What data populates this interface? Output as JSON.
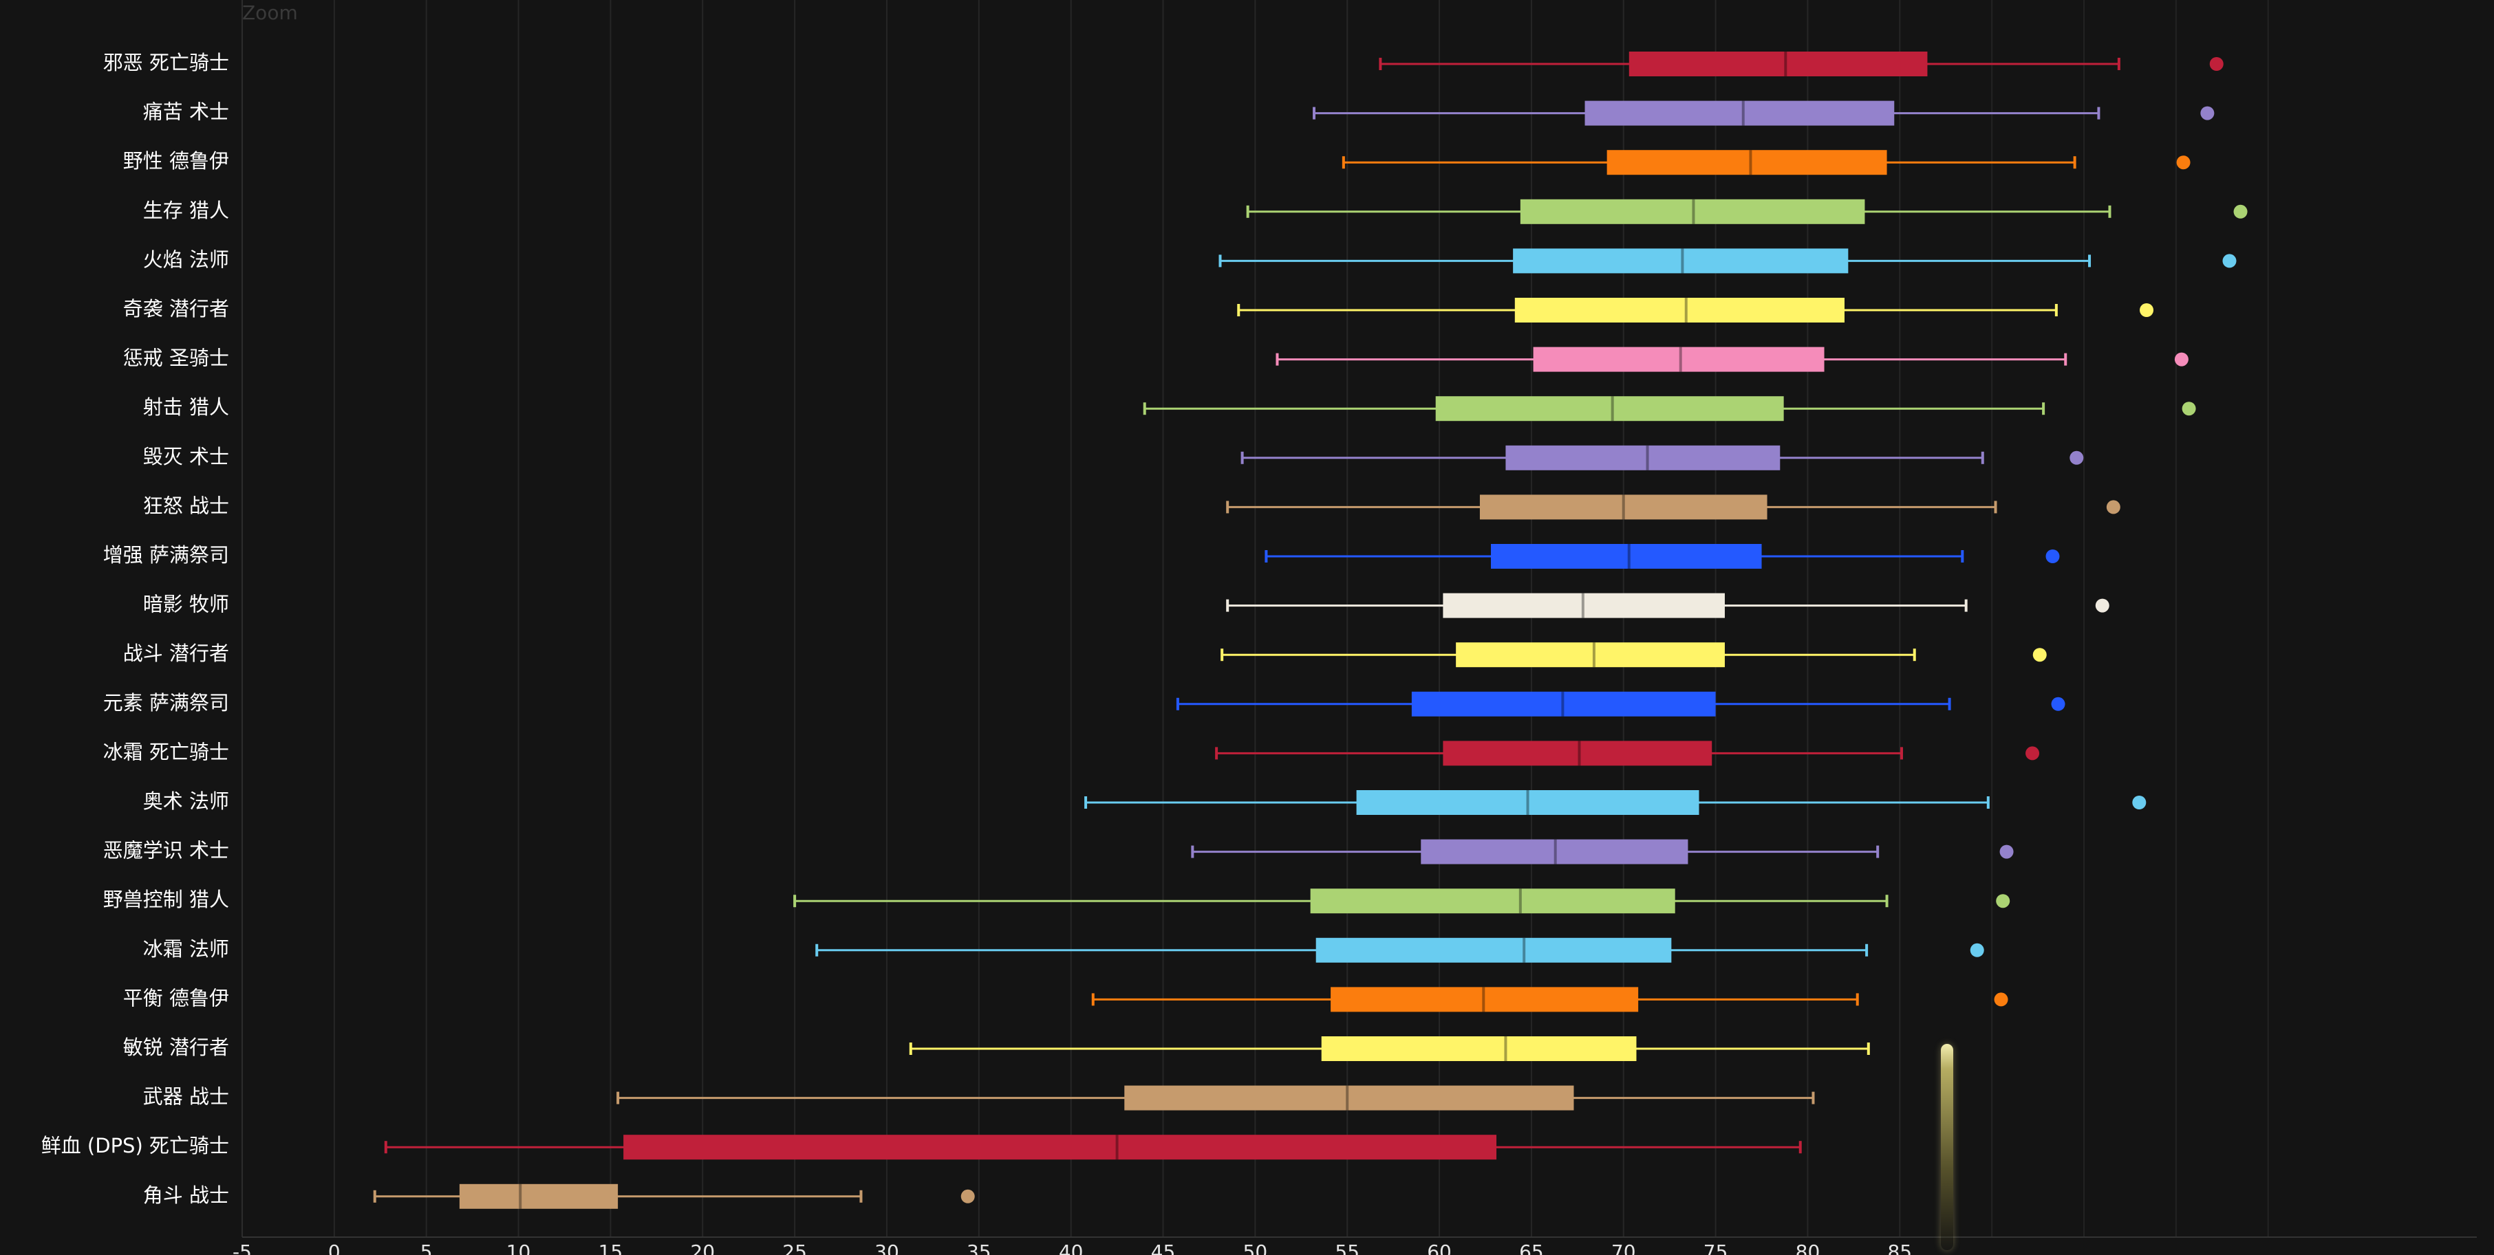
{
  "toolbar": {
    "zoom_label": "Zoom"
  },
  "chart_data": {
    "type": "boxplot",
    "title": "",
    "xlabel": "",
    "ylabel": "",
    "xlim": [
      -5,
      88
    ],
    "x_ticks": [
      -5,
      0,
      5,
      10,
      15,
      20,
      25,
      30,
      35,
      40,
      45,
      50,
      55,
      60,
      65,
      70,
      75,
      80,
      85
    ],
    "grid": "vertical",
    "legend": "none",
    "series": [
      {
        "label": "邪恶 死亡骑士",
        "color": "#c0203a",
        "min": 56.8,
        "q1": 70.3,
        "median": 78.8,
        "q3": 86.5,
        "max": 96.9,
        "outlier": 102.2
      },
      {
        "label": "痛苦 术士",
        "color": "#9482cc",
        "min": 53.2,
        "q1": 67.9,
        "median": 76.5,
        "q3": 84.7,
        "max": 95.8,
        "outlier": 101.7
      },
      {
        "label": "野性 德鲁伊",
        "color": "#fb7d0e",
        "min": 54.8,
        "q1": 69.1,
        "median": 76.9,
        "q3": 84.3,
        "max": 94.5,
        "outlier": 100.4
      },
      {
        "label": "生存 猎人",
        "color": "#abd373",
        "min": 49.6,
        "q1": 64.4,
        "median": 73.8,
        "q3": 83.1,
        "max": 96.4,
        "outlier": 103.5
      },
      {
        "label": "火焰 法师",
        "color": "#69ccf0",
        "min": 48.1,
        "q1": 64.0,
        "median": 73.2,
        "q3": 82.2,
        "max": 95.3,
        "outlier": 102.9
      },
      {
        "label": "奇袭 潜行者",
        "color": "#fff468",
        "min": 49.1,
        "q1": 64.1,
        "median": 73.4,
        "q3": 82.0,
        "max": 93.5,
        "outlier": 98.4
      },
      {
        "label": "惩戒 圣骑士",
        "color": "#f58cba",
        "min": 51.2,
        "q1": 65.1,
        "median": 73.1,
        "q3": 80.9,
        "max": 94.0,
        "outlier": 100.3
      },
      {
        "label": "射击 猎人",
        "color": "#abd373",
        "min": 44.0,
        "q1": 59.8,
        "median": 69.4,
        "q3": 78.7,
        "max": 92.8,
        "outlier": 100.7
      },
      {
        "label": "毁灭 术士",
        "color": "#9482cc",
        "min": 49.3,
        "q1": 63.6,
        "median": 71.3,
        "q3": 78.5,
        "max": 89.5,
        "outlier": 94.6
      },
      {
        "label": "狂怒 战士",
        "color": "#c69b6d",
        "min": 48.5,
        "q1": 62.2,
        "median": 70.0,
        "q3": 77.8,
        "max": 90.2,
        "outlier": 96.6
      },
      {
        "label": "增强 萨满祭司",
        "color": "#2459ff",
        "min": 50.6,
        "q1": 62.8,
        "median": 70.3,
        "q3": 77.5,
        "max": 88.4,
        "outlier": 93.3
      },
      {
        "label": "暗影 牧师",
        "color": "#f0ebe0",
        "min": 48.5,
        "q1": 60.2,
        "median": 67.8,
        "q3": 75.5,
        "max": 88.6,
        "outlier": 96.0
      },
      {
        "label": "战斗 潜行者",
        "color": "#fff468",
        "min": 48.2,
        "q1": 60.9,
        "median": 68.4,
        "q3": 75.5,
        "max": 85.8,
        "outlier": 92.6
      },
      {
        "label": "元素 萨满祭司",
        "color": "#2459ff",
        "min": 45.8,
        "q1": 58.5,
        "median": 66.7,
        "q3": 75.0,
        "max": 87.7,
        "outlier": 93.6
      },
      {
        "label": "冰霜 死亡骑士",
        "color": "#c0203a",
        "min": 47.9,
        "q1": 60.2,
        "median": 67.6,
        "q3": 74.8,
        "max": 85.1,
        "outlier": 92.2
      },
      {
        "label": "奥术 法师",
        "color": "#69ccf0",
        "min": 40.8,
        "q1": 55.5,
        "median": 64.8,
        "q3": 74.1,
        "max": 89.8,
        "outlier": 98.0
      },
      {
        "label": "恶魔学识 术士",
        "color": "#9482cc",
        "min": 46.6,
        "q1": 59.0,
        "median": 66.3,
        "q3": 73.5,
        "max": 83.8,
        "outlier": 90.8
      },
      {
        "label": "野兽控制 猎人",
        "color": "#abd373",
        "min": 25.0,
        "q1": 53.0,
        "median": 64.4,
        "q3": 72.8,
        "max": 84.3,
        "outlier": 90.6
      },
      {
        "label": "冰霜 法师",
        "color": "#69ccf0",
        "min": 26.2,
        "q1": 53.3,
        "median": 64.6,
        "q3": 72.6,
        "max": 83.2,
        "outlier": 89.2
      },
      {
        "label": "平衡 德鲁伊",
        "color": "#fb7d0e",
        "min": 41.2,
        "q1": 54.1,
        "median": 62.4,
        "q3": 70.8,
        "max": 82.7,
        "outlier": 90.5
      },
      {
        "label": "敏锐 潜行者",
        "color": "#fff468",
        "min": 31.3,
        "q1": 53.6,
        "median": 63.6,
        "q3": 70.7,
        "max": 83.3,
        "outlier": null
      },
      {
        "label": "武器 战士",
        "color": "#c69b6d",
        "min": 15.4,
        "q1": 42.9,
        "median": 55.0,
        "q3": 67.3,
        "max": 80.3,
        "outlier": null
      },
      {
        "label": "鲜血 (DPS) 死亡骑士",
        "color": "#c0203a",
        "min": 2.8,
        "q1": 15.7,
        "median": 42.5,
        "q3": 63.1,
        "max": 79.6,
        "outlier": null
      },
      {
        "label": "角斗 战士",
        "color": "#c69b6d",
        "min": 2.2,
        "q1": 6.8,
        "median": 10.1,
        "q3": 15.4,
        "max": 28.6,
        "outlier": 34.4
      }
    ]
  }
}
